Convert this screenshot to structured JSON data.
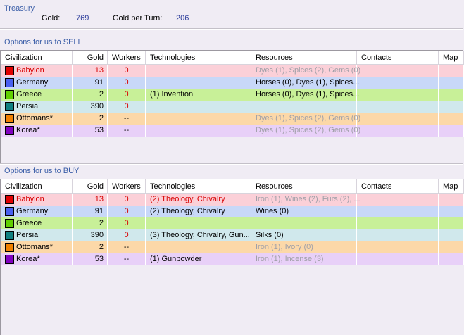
{
  "treasury": {
    "title": "Treasury",
    "gold_label": "Gold:",
    "gold_value": "769",
    "gpt_label": "Gold per Turn:",
    "gpt_value": "206"
  },
  "columns": [
    "Civilization",
    "Gold",
    "Workers",
    "Technologies",
    "Resources",
    "Contacts",
    "Map"
  ],
  "sell": {
    "title": "Options for us to SELL",
    "rows": [
      {
        "civ": "Babylon",
        "color": "#e00000",
        "row_bg": "#fbd0d8",
        "gold": "13",
        "workers": "0",
        "tech": "",
        "res": "Dyes (1), Spices (2), Gems (0)",
        "res_dim": true,
        "red": true
      },
      {
        "civ": "Germany",
        "color": "#4860f0",
        "row_bg": "#c8d8f8",
        "gold": "91",
        "workers": "0",
        "tech": "",
        "res": "Horses (0), Dyes (1), Spices...",
        "res_dim": false,
        "red": false
      },
      {
        "civ": "Greece",
        "color": "#60d000",
        "row_bg": "#c8f098",
        "gold": "2",
        "workers": "0",
        "tech": "(1) Invention",
        "res": "Horses (0), Dyes (1), Spices...",
        "res_dim": false,
        "red": false
      },
      {
        "civ": "Persia",
        "color": "#108080",
        "row_bg": "#d0e8ec",
        "gold": "390",
        "workers": "0",
        "tech": "",
        "res": "",
        "res_dim": false,
        "red": false
      },
      {
        "civ": "Ottomans*",
        "color": "#f08000",
        "row_bg": "#fcd8a8",
        "gold": "2",
        "workers": "--",
        "tech": "",
        "res": "Dyes (1), Spices (2), Gems (0)",
        "res_dim": true,
        "red": false
      },
      {
        "civ": "Korea*",
        "color": "#8000c0",
        "row_bg": "#e8d0f8",
        "gold": "53",
        "workers": "--",
        "tech": "",
        "res": "Dyes (1), Spices (2), Gems (0)",
        "res_dim": true,
        "red": false
      }
    ]
  },
  "buy": {
    "title": "Options for us to BUY",
    "rows": [
      {
        "civ": "Babylon",
        "color": "#e00000",
        "row_bg": "#fbd0d8",
        "gold": "13",
        "workers": "0",
        "tech": "(2) Theology, Chivalry",
        "res": "Iron (1), Wines (2), Furs (2), ...",
        "res_dim": true,
        "red": true
      },
      {
        "civ": "Germany",
        "color": "#4860f0",
        "row_bg": "#c8d8f8",
        "gold": "91",
        "workers": "0",
        "tech": "(2) Theology, Chivalry",
        "res": "Wines (0)",
        "res_dim": false,
        "red": false
      },
      {
        "civ": "Greece",
        "color": "#60d000",
        "row_bg": "#c8f098",
        "gold": "2",
        "workers": "0",
        "tech": "",
        "res": "",
        "res_dim": false,
        "red": false
      },
      {
        "civ": "Persia",
        "color": "#108080",
        "row_bg": "#d0e8ec",
        "gold": "390",
        "workers": "0",
        "tech": "(3) Theology, Chivalry, Gun...",
        "res": "Silks (0)",
        "res_dim": false,
        "red": false
      },
      {
        "civ": "Ottomans*",
        "color": "#f08000",
        "row_bg": "#fcd8a8",
        "gold": "2",
        "workers": "--",
        "tech": "",
        "res": "Iron (1), Ivory (0)",
        "res_dim": true,
        "red": false
      },
      {
        "civ": "Korea*",
        "color": "#8000c0",
        "row_bg": "#e8d0f8",
        "gold": "53",
        "workers": "--",
        "tech": "(1) Gunpowder",
        "res": "Iron (1), Incense (3)",
        "res_dim": true,
        "red": false
      }
    ]
  }
}
